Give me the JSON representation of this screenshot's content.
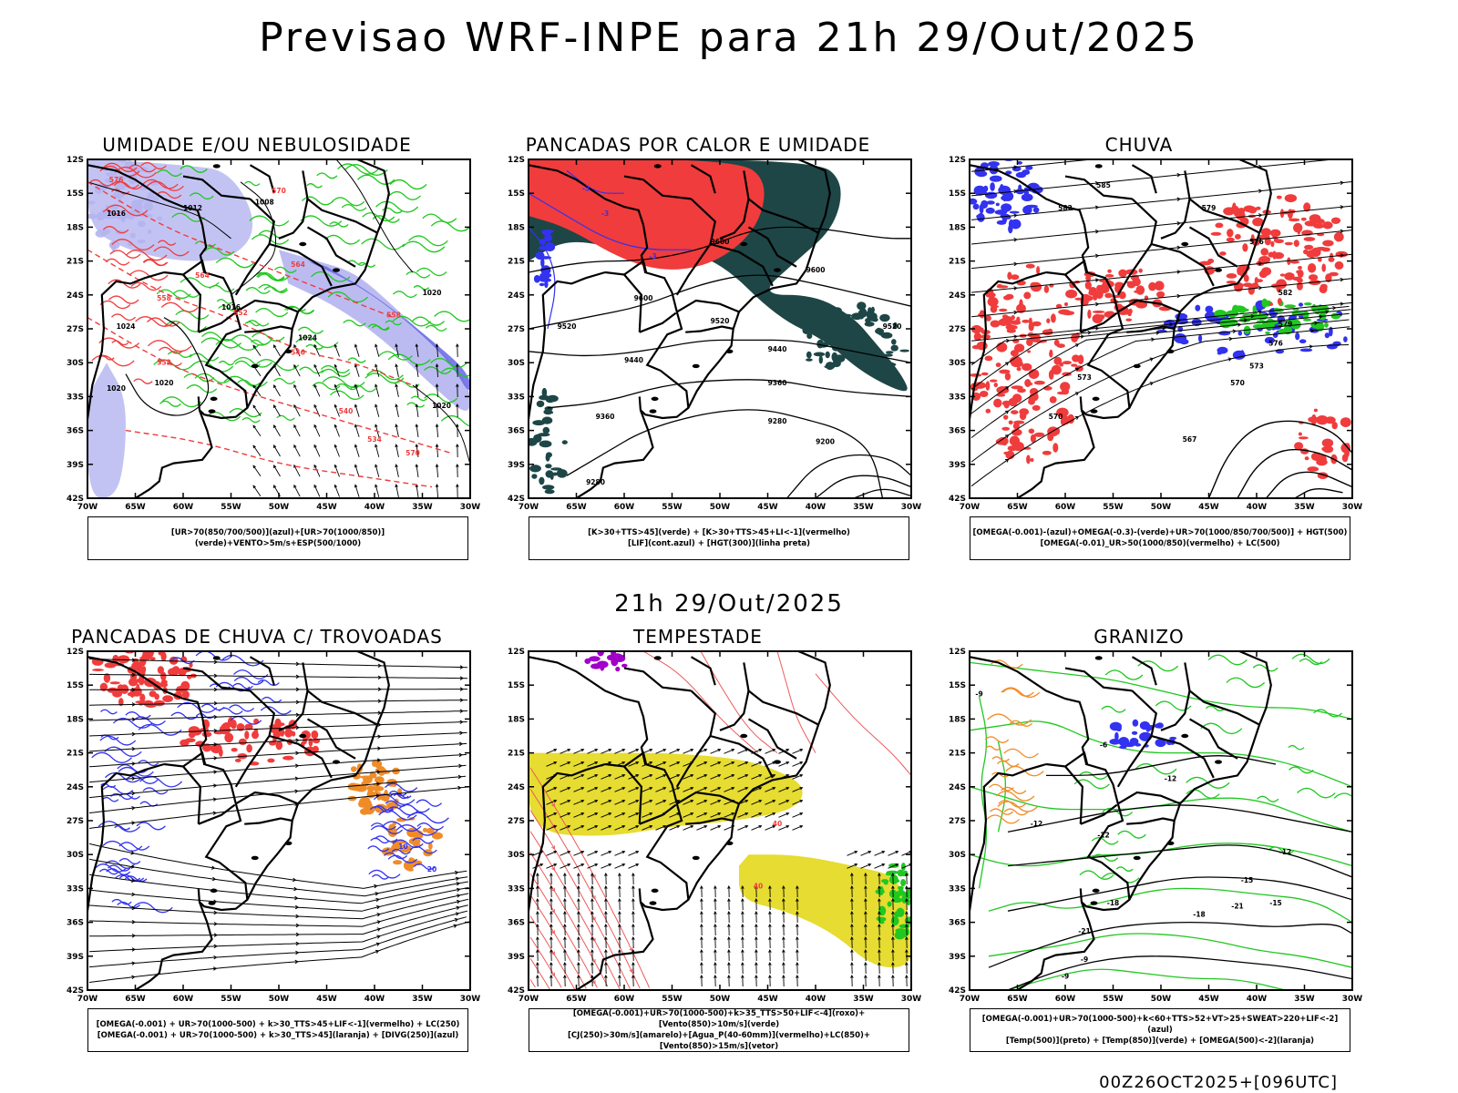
{
  "title": "Previsao WRF-INPE  para 21h 29/Out/2025",
  "mid_title": "21h 29/Out/2025",
  "footer": "00Z26OCT2025+[096UTC]",
  "lat_labels": [
    "12S",
    "15S",
    "18S",
    "21S",
    "24S",
    "27S",
    "30S",
    "33S",
    "36S",
    "39S",
    "42S"
  ],
  "lon_labels": [
    "70W",
    "65W",
    "60W",
    "55W",
    "50W",
    "45W",
    "40W",
    "35W",
    "30W"
  ],
  "colors": {
    "lavender": "#b4b4f0",
    "blue": "#3232f0",
    "green": "#20c820",
    "red": "#f03c3c",
    "darkteal": "#1e4646",
    "yellow": "#e6dc32",
    "orange": "#f08c28",
    "purple": "#a000c8"
  },
  "panels": [
    {
      "id": "umidade",
      "title": "UMIDADE E/OU NEBULOSIDADE",
      "legend": [
        "[UR>70(850/700/500)](azul)+[UR>70(1000/850)](verde)+VENTO>5m/s+ESP(500/1000)"
      ],
      "labels": [
        "1016",
        "1012",
        "1020",
        "1008",
        "1016",
        "1024",
        "1020",
        "1024",
        "1020",
        "1020",
        "576",
        "570",
        "564",
        "558",
        "552",
        "546",
        "540",
        "534",
        "570",
        "564",
        "558",
        "552"
      ]
    },
    {
      "id": "pancadas-calor",
      "title": "PANCADAS POR CALOR E UMIDADE",
      "legend": [
        "[K>30+TTS>45](verde) + [K>30+TTS>45+LI<-1](vermelho)",
        "[LIF](cont.azul) + [HGT(300)](linha preta)"
      ],
      "labels": [
        "9600",
        "9600",
        "9600",
        "9520",
        "9520",
        "9520",
        "9440",
        "9440",
        "9360",
        "9360",
        "9280",
        "9280",
        "9200",
        "-3",
        "-3",
        "-3",
        "20"
      ]
    },
    {
      "id": "chuva",
      "title": "CHUVA",
      "legend": [
        "[OMEGA(-0.001)-(azul)+OMEGA(-0.3)-(verde)+UR>70(1000/850/700/500)] + HGT(500)",
        "[OMEGA(-0.01)_UR>50(1000/850)(vermelho) + LC(500)"
      ],
      "labels": [
        "585",
        "582",
        "579",
        "576",
        "573",
        "570",
        "567",
        "582",
        "579",
        "576",
        "573",
        "570"
      ]
    },
    {
      "id": "trovoadas",
      "title": "PANCADAS DE CHUVA C/ TROVOADAS",
      "legend": [
        "[OMEGA(-0.001) + UR>70(1000-500) + k>30_TTS>45+LIF<-1](vermelho) + LC(250)",
        "[OMEGA(-0.001) + UR>70(1000-500) + k>30_TTS>45](laranja) + [DIVG(250)](azul)"
      ],
      "labels": [
        "10",
        "20"
      ]
    },
    {
      "id": "tempestade",
      "title": "TEMPESTADE",
      "legend": [
        "[OMEGA(-0.001)+UR>70(1000-500)+k>35_TTS>50+LIF<-4](roxo)+[Vento(850)>10m/s](verde)",
        "[CJ(250)>30m/s](amarelo)+[Agua_P(40-60mm)](vermelho)+LC(850)+[Vento(850)>15m/s](vetor)"
      ],
      "labels": [
        "40",
        "40"
      ]
    },
    {
      "id": "granizo",
      "title": "GRANIZO",
      "legend": [
        "[OMEGA(-0.001)+UR>70(1000-500)+k<60+TTS>52+VT>25+SWEAT>220+LIF<-2](azul)",
        "[Temp(500)](preto) + [Temp(850)](verde) + [OMEGA(500)<-2](laranja)"
      ],
      "labels": [
        "-9",
        "-6",
        "-12",
        "-12",
        "-12",
        "-15",
        "-18",
        "-18",
        "-21",
        "-21",
        "-15",
        "-12",
        "-9",
        "-9"
      ]
    }
  ]
}
